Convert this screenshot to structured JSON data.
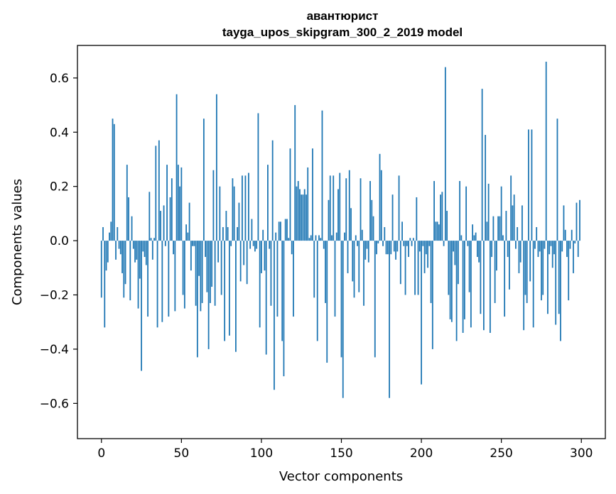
{
  "chart_data": {
    "type": "bar",
    "title": "авантюрист",
    "subtitle": "tayga_upos_skipgram_300_2_2019 model",
    "xlabel": "Vector components",
    "ylabel": "Components values",
    "xlim": [
      -15,
      315
    ],
    "ylim": [
      -0.73,
      0.72
    ],
    "xticks": [
      0,
      50,
      100,
      150,
      200,
      250,
      300
    ],
    "yticks": [
      -0.6,
      -0.4,
      -0.2,
      0.0,
      0.2,
      0.4,
      0.6
    ],
    "xtick_labels": [
      "0",
      "50",
      "100",
      "150",
      "200",
      "250",
      "300"
    ],
    "ytick_labels": [
      "−0.6",
      "−0.4",
      "−0.2",
      "0.0",
      "0.2",
      "0.4",
      "0.6"
    ],
    "bar_color": "#1f77b4",
    "grid": false,
    "x_start": 0,
    "values": [
      -0.21,
      0.05,
      -0.32,
      -0.11,
      -0.08,
      0.03,
      0.07,
      0.45,
      0.43,
      -0.07,
      0.05,
      -0.03,
      -0.05,
      -0.12,
      -0.21,
      -0.16,
      0.28,
      0.16,
      -0.22,
      0.09,
      -0.03,
      -0.08,
      -0.07,
      -0.25,
      -0.14,
      -0.48,
      -0.04,
      -0.06,
      -0.09,
      -0.28,
      0.18,
      0.01,
      -0.07,
      0.01,
      0.35,
      -0.32,
      0.37,
      0.11,
      -0.3,
      0.13,
      -0.02,
      0.28,
      -0.28,
      0.16,
      0.23,
      -0.05,
      -0.26,
      0.54,
      0.28,
      0.2,
      0.27,
      -0.2,
      -0.25,
      0.06,
      0.03,
      0.14,
      -0.11,
      -0.02,
      -0.02,
      -0.24,
      -0.43,
      -0.13,
      -0.26,
      -0.23,
      0.45,
      -0.06,
      -0.19,
      -0.4,
      -0.23,
      -0.17,
      0.26,
      -0.24,
      0.54,
      -0.08,
      0.2,
      -0.2,
      0.05,
      -0.37,
      0.11,
      0.05,
      -0.35,
      -0.02,
      0.23,
      0.2,
      -0.41,
      0.05,
      0.14,
      -0.15,
      0.24,
      -0.09,
      0.24,
      -0.16,
      0.25,
      -0.03,
      0.08,
      -0.02,
      -0.04,
      -0.03,
      0.47,
      -0.32,
      -0.12,
      0.04,
      -0.11,
      -0.42,
      0.28,
      -0.03,
      -0.24,
      0.37,
      -0.55,
      0.03,
      -0.28,
      0.07,
      0.07,
      -0.37,
      -0.5,
      0.08,
      0.08,
      0.01,
      0.34,
      -0.05,
      -0.28,
      0.5,
      0.2,
      0.22,
      0.19,
      0.17,
      0.17,
      0.19,
      0.17,
      0.27,
      0.01,
      0.02,
      0.34,
      -0.21,
      0.02,
      -0.37,
      0.02,
      0.01,
      0.48,
      -0.03,
      -0.23,
      -0.45,
      0.15,
      0.24,
      0.02,
      0.24,
      -0.28,
      0.03,
      0.19,
      0.25,
      -0.43,
      -0.58,
      0.03,
      0.23,
      -0.12,
      0.26,
      0.12,
      -0.15,
      -0.21,
      0.02,
      -0.02,
      -0.19,
      0.23,
      0.04,
      -0.24,
      -0.07,
      -0.03,
      -0.08,
      0.22,
      0.15,
      0.09,
      -0.43,
      -0.05,
      -0.01,
      0.32,
      0.26,
      -0.02,
      0.05,
      -0.05,
      -0.05,
      -0.58,
      -0.05,
      0.17,
      -0.04,
      -0.07,
      -0.04,
      0.24,
      -0.16,
      0.07,
      -0.02,
      -0.2,
      -0.02,
      -0.06,
      0.01,
      -0.02,
      0.01,
      -0.2,
      0.16,
      -0.2,
      -0.04,
      -0.53,
      -0.02,
      -0.12,
      -0.05,
      -0.1,
      -0.02,
      -0.23,
      -0.4,
      0.22,
      0.07,
      0.07,
      0.06,
      0.17,
      0.18,
      -0.02,
      0.64,
      0.11,
      -0.2,
      -0.29,
      -0.3,
      -0.04,
      -0.09,
      -0.37,
      -0.16,
      0.22,
      0.02,
      -0.34,
      -0.29,
      0.2,
      -0.02,
      -0.19,
      -0.32,
      0.06,
      0.02,
      0.03,
      -0.06,
      -0.08,
      -0.27,
      0.56,
      -0.33,
      0.39,
      0.07,
      0.21,
      -0.34,
      -0.06,
      0.09,
      -0.23,
      -0.11,
      0.09,
      0.09,
      0.2,
      0.02,
      -0.28,
      0.11,
      -0.06,
      -0.18,
      0.24,
      0.13,
      0.17,
      -0.03,
      0.05,
      -0.12,
      -0.08,
      0.13,
      -0.33,
      -0.2,
      -0.23,
      0.41,
      -0.15,
      0.41,
      -0.32,
      -0.03,
      0.05,
      -0.06,
      -0.04,
      -0.22,
      -0.2,
      -0.03,
      0.66,
      -0.27,
      -0.05,
      -0.02,
      -0.1,
      -0.05,
      -0.31,
      0.45,
      -0.27,
      -0.37,
      -0.04,
      0.13,
      0.04,
      -0.06,
      -0.22,
      -0.03,
      0.04,
      -0.12,
      -0.01,
      0.14,
      -0.06,
      0.15
    ]
  }
}
